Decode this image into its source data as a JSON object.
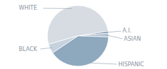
{
  "chart_data": {
    "type": "pie",
    "categories": [
      "WHITE",
      "A.I.",
      "ASIAN",
      "HISPANIC",
      "BLACK"
    ],
    "values": [
      52,
      1,
      2,
      40,
      5
    ],
    "colors": [
      "#d6dce2",
      "#6f8ca8",
      "#b4c3d1",
      "#8ea8be",
      "#c6d2dd"
    ]
  }
}
